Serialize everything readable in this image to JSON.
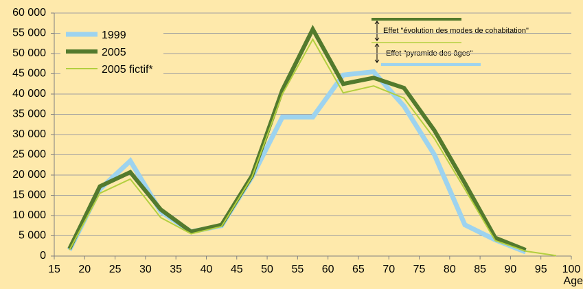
{
  "chart_data": {
    "type": "line",
    "x": [
      17.5,
      22.5,
      27.5,
      32.5,
      37.5,
      42.5,
      47.5,
      52.5,
      57.5,
      62.5,
      67.5,
      72.5,
      77.5,
      82.5,
      87.5,
      92.5,
      97.5
    ],
    "series": [
      {
        "name": "1999",
        "color": "#9dd3ef",
        "values": [
          1500,
          16500,
          23500,
          11000,
          6000,
          7500,
          19500,
          34300,
          34300,
          44700,
          45500,
          37000,
          25000,
          7700,
          4000,
          1000,
          null
        ]
      },
      {
        "name": "2005",
        "color": "#537a2d",
        "values": [
          1800,
          17200,
          20700,
          11500,
          6000,
          7700,
          19800,
          41000,
          56000,
          42500,
          44000,
          41500,
          31000,
          18000,
          4500,
          1500,
          null
        ]
      },
      {
        "name": "2005 fictif*",
        "color": "#b3cf3f",
        "values": [
          1500,
          15500,
          19000,
          9500,
          5500,
          7300,
          19500,
          40000,
          53500,
          40300,
          42000,
          39000,
          29000,
          16500,
          3800,
          1200,
          100
        ]
      }
    ],
    "x_label": "Age",
    "annotations": [
      "Effet \"évolution des modes de cohabitation\"",
      "Effet \"pyramide des âges\""
    ],
    "xlim": [
      15,
      100
    ],
    "xticks": [
      15,
      20,
      25,
      30,
      35,
      40,
      45,
      50,
      55,
      60,
      65,
      70,
      75,
      80,
      85,
      90,
      95,
      100
    ],
    "ylim": [
      0,
      60000
    ],
    "yticks": [
      0,
      {
        "value": 5000,
        "label": "5 000"
      },
      {
        "value": 10000,
        "label": "10 000"
      },
      {
        "value": 15000,
        "label": "15 000"
      },
      {
        "value": 20000,
        "label": "20 000"
      },
      {
        "value": 25000,
        "label": "25 000"
      },
      {
        "value": 30000,
        "label": "30 000"
      },
      {
        "value": 35000,
        "label": "35 000"
      },
      {
        "value": 40000,
        "label": "40 000"
      },
      {
        "value": 45000,
        "label": "45 000"
      },
      {
        "value": 50000,
        "label": "50 000"
      },
      {
        "value": 55000,
        "label": "55 000"
      },
      {
        "value": 60000,
        "label": "60 000"
      }
    ],
    "grid": true,
    "legend": "upper left"
  }
}
